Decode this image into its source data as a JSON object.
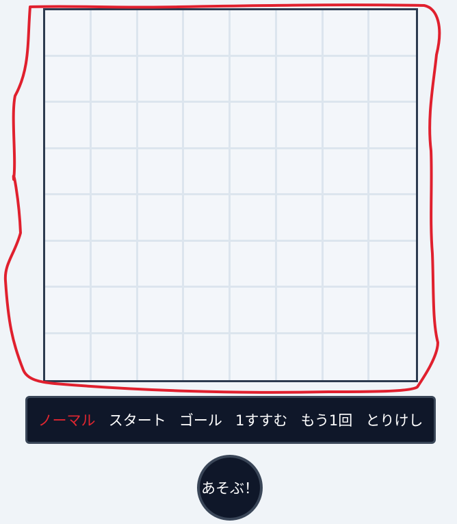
{
  "board": {
    "rows": 8,
    "cols": 8
  },
  "toolbar": {
    "items": [
      {
        "label": "ノーマル",
        "active": true
      },
      {
        "label": "スタート",
        "active": false
      },
      {
        "label": "ゴール",
        "active": false
      },
      {
        "label": "1すすむ",
        "active": false
      },
      {
        "label": "もう1回",
        "active": false
      },
      {
        "label": "とりけし",
        "active": false
      }
    ]
  },
  "play_button": {
    "label": "あそぶ！"
  },
  "colors": {
    "active_mode": "#e02630",
    "annotation_stroke": "#e0202e",
    "toolbar_bg": "#0f1729"
  }
}
